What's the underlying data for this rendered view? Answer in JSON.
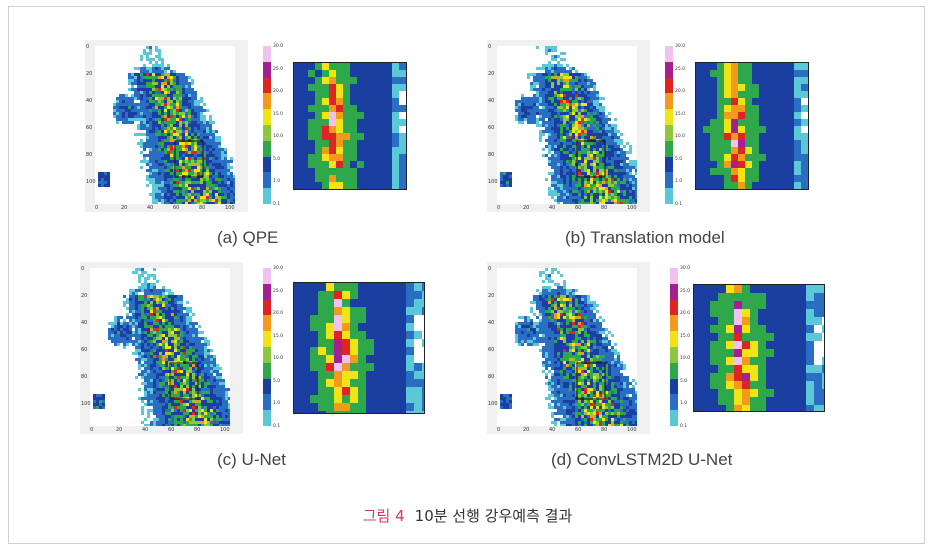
{
  "panels": [
    {
      "id": "a",
      "caption": "(a) QPE",
      "cbar_ticks": [
        "30.0",
        "25.0",
        "20.0",
        "15.0",
        "10.0",
        "5.0",
        "1.0",
        "0.1"
      ],
      "x_ticks": [
        "0",
        "20",
        "40",
        "60",
        "80",
        "100"
      ],
      "y_ticks": [
        "0",
        "20",
        "40",
        "60",
        "80",
        "100"
      ]
    },
    {
      "id": "b",
      "caption": "(b) Translation model",
      "cbar_ticks": [
        "30.0",
        "25.0",
        "20.0",
        "15.0",
        "10.0",
        "5.0",
        "1.0",
        "0.1"
      ],
      "x_ticks": [
        "0",
        "20",
        "40",
        "60",
        "80",
        "100"
      ],
      "y_ticks": [
        "0",
        "20",
        "40",
        "60",
        "80",
        "100"
      ]
    },
    {
      "id": "c",
      "caption": "(c) U-Net",
      "cbar_ticks": [
        "30.0",
        "25.0",
        "20.0",
        "15.0",
        "10.0",
        "5.0",
        "1.0",
        "0.1"
      ],
      "x_ticks": [
        "0",
        "20",
        "40",
        "60",
        "80",
        "100"
      ],
      "y_ticks": [
        "0",
        "20",
        "40",
        "60",
        "80",
        "100"
      ]
    },
    {
      "id": "d",
      "caption": "(d) ConvLSTM2D U-Net",
      "cbar_ticks": [
        "30.0",
        "25.0",
        "20.0",
        "15.0",
        "10.0",
        "5.0",
        "1.0",
        "0.1"
      ],
      "x_ticks": [
        "0",
        "20",
        "40",
        "60",
        "80",
        "100"
      ],
      "y_ticks": [
        "0",
        "20",
        "40",
        "60",
        "80",
        "100"
      ]
    }
  ],
  "colormap": [
    "#5bc8d8",
    "#2a6ec4",
    "#1a3fa0",
    "#2ea84a",
    "#8dc63f",
    "#f2e316",
    "#f29a1b",
    "#e02424",
    "#a3208e",
    "#f0c2f0"
  ],
  "figure_caption": {
    "label": "그림 4",
    "text": "10분 선행 강우예측 결과"
  }
}
